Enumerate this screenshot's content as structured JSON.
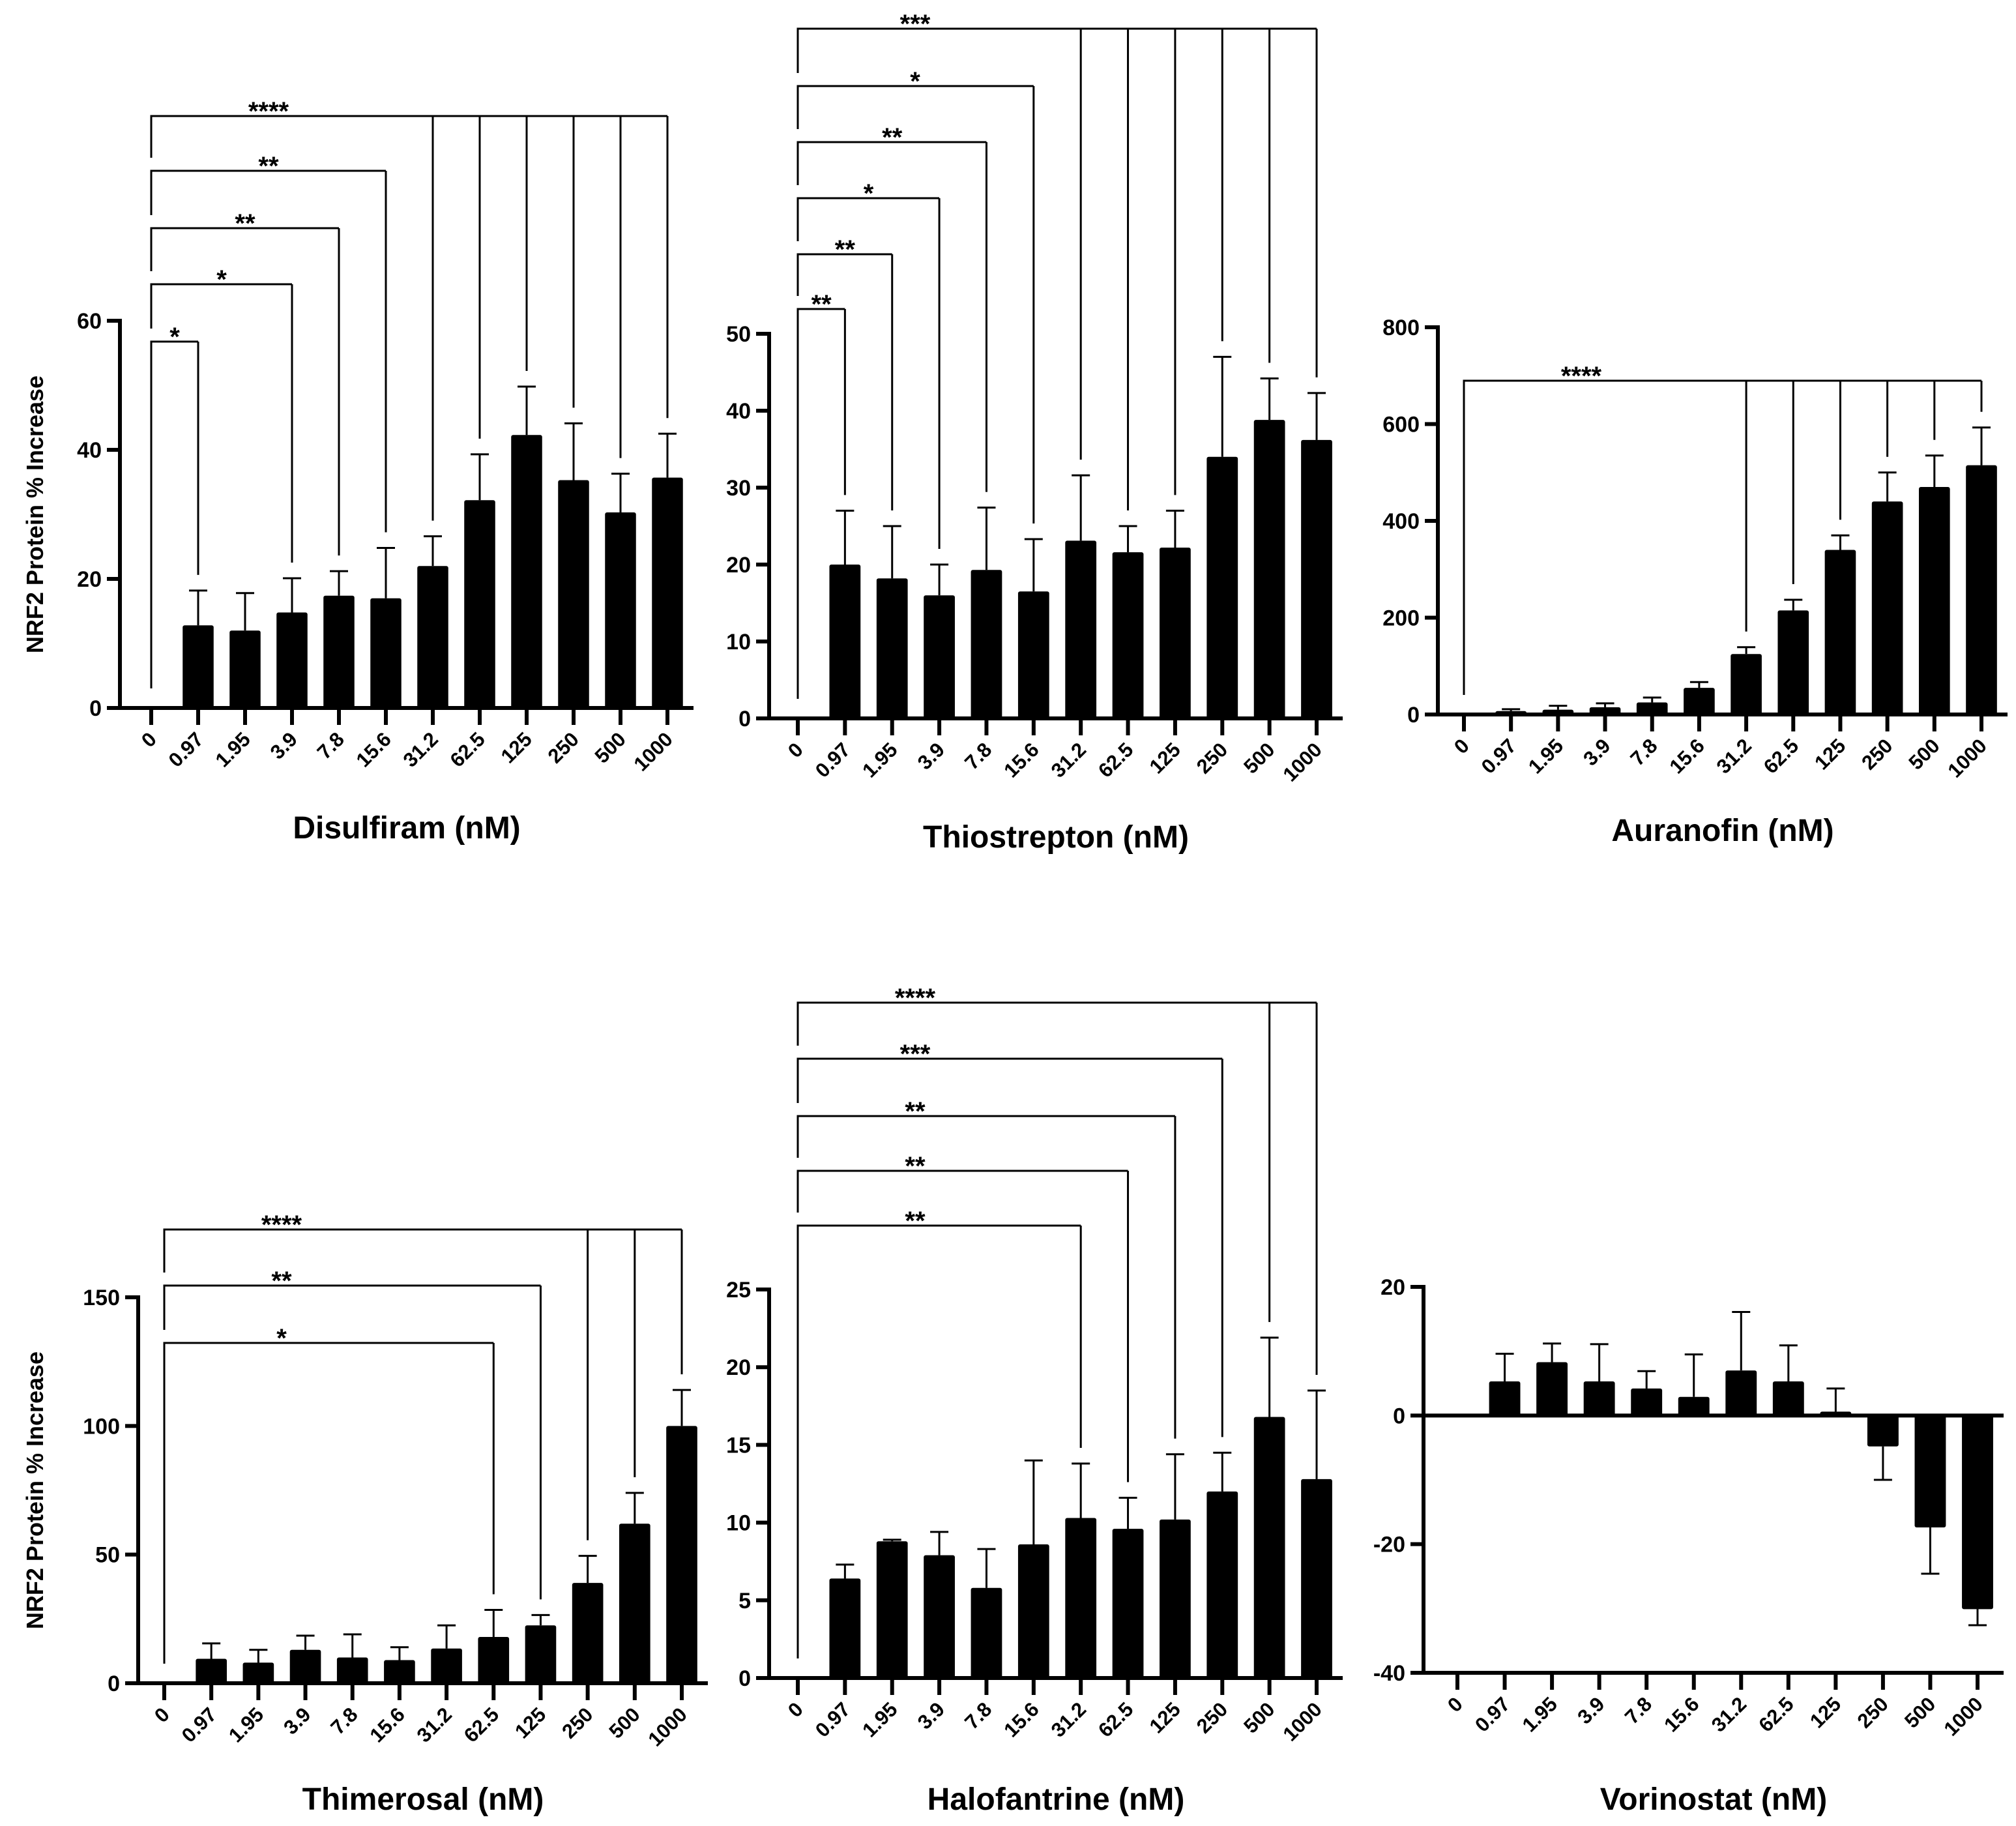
{
  "chart_data": [
    {
      "type": "bar",
      "title": "",
      "xlabel": "Disulfiram (nM)",
      "ylabel": "NRF2 Protein % Increase",
      "categories": [
        "0",
        "0.97",
        "1.95",
        "3.9",
        "7.8",
        "15.6",
        "31.2",
        "62.5",
        "125",
        "250",
        "500",
        "1000"
      ],
      "values": [
        0,
        12.8,
        12,
        14.8,
        17.4,
        17,
        22,
        32.2,
        42.3,
        35.3,
        30.3,
        35.7
      ],
      "errors": [
        0,
        5.4,
        5.8,
        5.3,
        3.8,
        7.8,
        4.6,
        7.1,
        7.5,
        8.8,
        6,
        6.8
      ],
      "ylim": [
        0,
        60
      ],
      "yticks": [
        "0",
        "20",
        "40",
        "60"
      ],
      "significance": [
        {
          "label": "****",
          "targets": [
            6,
            7,
            8,
            9,
            10,
            11
          ]
        },
        {
          "label": "**",
          "targets": [
            5
          ]
        },
        {
          "label": "**",
          "targets": [
            4
          ]
        },
        {
          "label": "*",
          "targets": [
            3
          ]
        },
        {
          "label": "*",
          "targets": [
            1
          ]
        }
      ]
    },
    {
      "type": "bar",
      "title": "",
      "xlabel": "Thiostrepton (nM)",
      "ylabel": "",
      "categories": [
        "0",
        "0.97",
        "1.95",
        "3.9",
        "7.8",
        "15.6",
        "31.2",
        "62.5",
        "125",
        "250",
        "500",
        "1000"
      ],
      "values": [
        0,
        20,
        18.2,
        16,
        19.3,
        16.5,
        23.1,
        21.6,
        22.2,
        34,
        38.8,
        36.2
      ],
      "errors": [
        0,
        7,
        6.8,
        4,
        8.1,
        6.8,
        8.5,
        3.4,
        4.8,
        13,
        5.4,
        6.1
      ],
      "ylim": [
        0,
        50
      ],
      "yticks": [
        "0",
        "10",
        "20",
        "30",
        "40",
        "50"
      ],
      "significance": [
        {
          "label": "***",
          "targets": [
            6,
            7,
            8,
            9,
            10,
            11
          ]
        },
        {
          "label": "*",
          "targets": [
            5
          ]
        },
        {
          "label": "**",
          "targets": [
            4
          ]
        },
        {
          "label": "*",
          "targets": [
            3
          ]
        },
        {
          "label": "**",
          "targets": [
            2
          ]
        },
        {
          "label": "**",
          "targets": [
            1
          ]
        }
      ]
    },
    {
      "type": "bar",
      "title": "",
      "xlabel": "Auranofin (nM)",
      "ylabel": "",
      "categories": [
        "0",
        "0.97",
        "1.95",
        "3.9",
        "7.8",
        "15.6",
        "31.2",
        "62.5",
        "125",
        "250",
        "500",
        "1000"
      ],
      "values": [
        0,
        7,
        10,
        15,
        25,
        55,
        125,
        215,
        340,
        440,
        470,
        515
      ],
      "errors": [
        0,
        4,
        8,
        8,
        10,
        12,
        14,
        22,
        30,
        60,
        65,
        78
      ],
      "ylim": [
        0,
        800
      ],
      "yticks": [
        "0",
        "200",
        "400",
        "600",
        "800"
      ],
      "significance": [
        {
          "label": "****",
          "targets": [
            6,
            7,
            8,
            9,
            10,
            11
          ]
        }
      ]
    },
    {
      "type": "bar",
      "title": "",
      "xlabel": "Thimerosal (nM)",
      "ylabel": "NRF2 Protein % Increase",
      "categories": [
        "0",
        "0.97",
        "1.95",
        "3.9",
        "7.8",
        "15.6",
        "31.2",
        "62.5",
        "125",
        "250",
        "500",
        "1000"
      ],
      "values": [
        0,
        9.5,
        8,
        13,
        10,
        9,
        13.5,
        18,
        22.5,
        39,
        62,
        100
      ],
      "errors": [
        0,
        6,
        5,
        5.5,
        9,
        5,
        9,
        10.5,
        4,
        10.5,
        12,
        14
      ],
      "ylim": [
        0,
        150
      ],
      "yticks": [
        "0",
        "50",
        "100",
        "150"
      ],
      "significance": [
        {
          "label": "****",
          "targets": [
            9,
            10,
            11
          ]
        },
        {
          "label": "**",
          "targets": [
            8
          ]
        },
        {
          "label": "*",
          "targets": [
            7
          ]
        }
      ]
    },
    {
      "type": "bar",
      "title": "",
      "xlabel": "Halofantrine (nM)",
      "ylabel": "",
      "categories": [
        "0",
        "0.97",
        "1.95",
        "3.9",
        "7.8",
        "15.6",
        "31.2",
        "62.5",
        "125",
        "250",
        "500",
        "1000"
      ],
      "values": [
        0,
        6.4,
        8.8,
        7.9,
        5.8,
        8.6,
        10.3,
        9.6,
        10.2,
        12,
        16.8,
        12.8
      ],
      "errors": [
        0,
        0.9,
        0.1,
        1.5,
        2.5,
        5.4,
        3.5,
        2,
        4.2,
        2.5,
        5.1,
        5.7
      ],
      "ylim": [
        0,
        25
      ],
      "yticks": [
        "0",
        "5",
        "10",
        "15",
        "20",
        "25"
      ],
      "significance": [
        {
          "label": "****",
          "targets": [
            10,
            11
          ]
        },
        {
          "label": "***",
          "targets": [
            9
          ]
        },
        {
          "label": "**",
          "targets": [
            8
          ]
        },
        {
          "label": "**",
          "targets": [
            7
          ]
        },
        {
          "label": "**",
          "targets": [
            6
          ]
        }
      ]
    },
    {
      "type": "bar",
      "title": "",
      "xlabel": "Vorinostat (nM)",
      "ylabel": "",
      "categories": [
        "0",
        "0.97",
        "1.95",
        "3.9",
        "7.8",
        "15.6",
        "31.2",
        "62.5",
        "125",
        "250",
        "500",
        "1000"
      ],
      "values": [
        0,
        5.3,
        8.3,
        5.3,
        4.2,
        2.9,
        7,
        5.3,
        0.6,
        -4.8,
        -17.4,
        -30.1
      ],
      "errors": [
        0,
        4.3,
        2.9,
        5.8,
        2.7,
        6.6,
        9.1,
        5.6,
        3.6,
        5.2,
        7.2,
        2.5
      ],
      "ylim": [
        -40,
        20
      ],
      "yticks": [
        "-40",
        "-20",
        "0",
        "20"
      ],
      "significance": []
    }
  ]
}
